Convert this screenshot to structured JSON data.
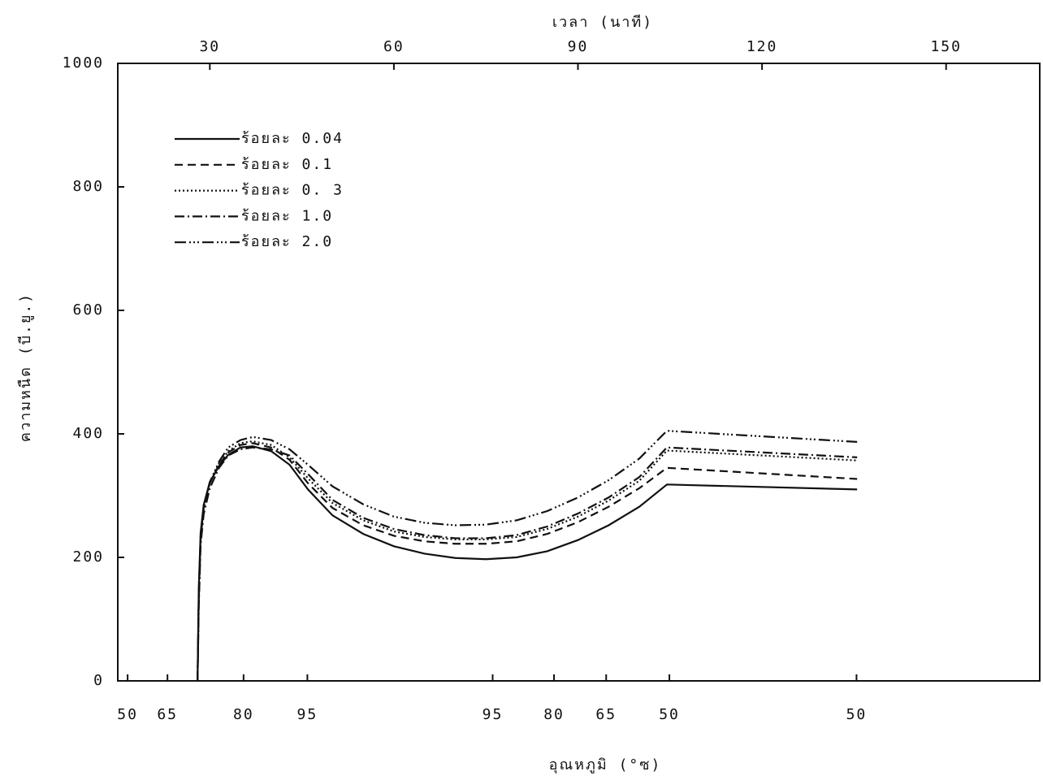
{
  "chart_data": {
    "type": "line",
    "top_axis_label": "เวลา (นาที)",
    "bottom_axis_label": "อุณหภูมิ (°ซ)",
    "y_axis_label": "ความหนืด (บี.ยู.)",
    "x": [
      28,
      28.2,
      28.5,
      29,
      30,
      31.5,
      33,
      35,
      37,
      40,
      43,
      46,
      50,
      55,
      60,
      65,
      70,
      75,
      80,
      85,
      90,
      95,
      100,
      104.5,
      135.5
    ],
    "series": [
      {
        "name": "ร้อยละ 0.04",
        "color": "#111111",
        "dash": "none",
        "values": [
          0,
          150,
          240,
          285,
          322,
          348,
          366,
          378,
          380,
          372,
          350,
          310,
          268,
          238,
          218,
          206,
          199,
          197,
          200,
          210,
          228,
          252,
          282,
          318,
          310
        ]
      },
      {
        "name": "ร้อยละ 0.1",
        "color": "#111111",
        "dash": "10,6",
        "values": [
          0,
          140,
          235,
          282,
          320,
          350,
          370,
          382,
          385,
          378,
          358,
          320,
          280,
          252,
          235,
          226,
          222,
          222,
          226,
          238,
          257,
          282,
          312,
          345,
          327
        ]
      },
      {
        "name": "ร้อยละ 0. 3",
        "color": "#111111",
        "dash": "2,3",
        "values": [
          0,
          135,
          230,
          280,
          320,
          352,
          372,
          385,
          388,
          382,
          362,
          328,
          288,
          260,
          242,
          233,
          229,
          229,
          233,
          246,
          266,
          292,
          324,
          373,
          357
        ]
      },
      {
        "name": "ร้อยละ 1.0",
        "color": "#111111",
        "dash": "12,4,2,4",
        "values": [
          0,
          120,
          220,
          270,
          312,
          345,
          365,
          375,
          378,
          375,
          365,
          335,
          293,
          264,
          246,
          236,
          231,
          231,
          236,
          250,
          271,
          297,
          330,
          378,
          362
        ]
      },
      {
        "name": "ร้อยละ 2.0",
        "color": "#111111",
        "dash": "14,4,2,3,2,3,2,4",
        "values": [
          0,
          130,
          228,
          280,
          322,
          355,
          378,
          390,
          395,
          390,
          375,
          350,
          315,
          286,
          266,
          256,
          252,
          253,
          260,
          275,
          297,
          325,
          360,
          405,
          387
        ]
      }
    ],
    "xlim": [
      15,
      165
    ],
    "xticks": [
      30,
      60,
      90,
      120,
      150
    ],
    "x2ticks": [
      {
        "value": 16.6,
        "label": "50"
      },
      {
        "value": 23.1,
        "label": "65"
      },
      {
        "value": 35.5,
        "label": "80"
      },
      {
        "value": 45.9,
        "label": "95"
      },
      {
        "value": 76.1,
        "label": "95"
      },
      {
        "value": 86.1,
        "label": "80"
      },
      {
        "value": 94.6,
        "label": "65"
      },
      {
        "value": 104.9,
        "label": "50"
      },
      {
        "value": 135.4,
        "label": "50"
      }
    ],
    "ylim": [
      0,
      1000
    ],
    "yticks": [
      0,
      200,
      400,
      600,
      800,
      1000
    ],
    "legend": "top-left"
  }
}
